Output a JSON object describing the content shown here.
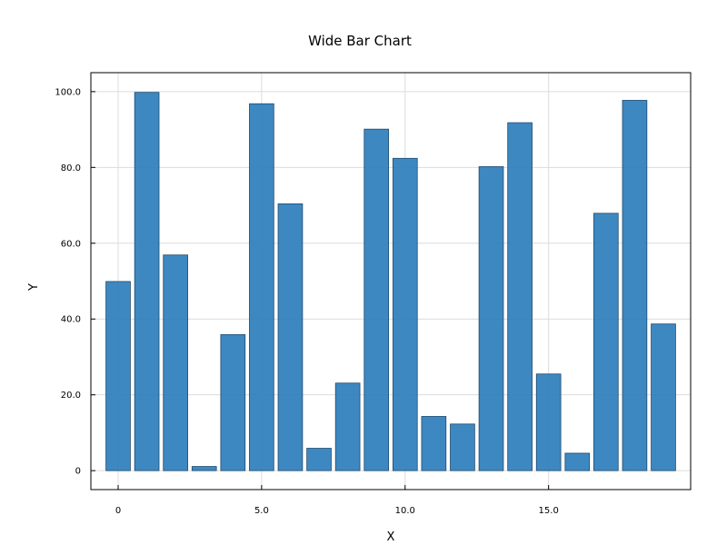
{
  "chart_data": {
    "type": "bar",
    "title": "Wide Bar Chart",
    "xlabel": "X",
    "ylabel": "Y",
    "x": [
      0,
      1,
      2,
      3,
      4,
      5,
      6,
      7,
      8,
      9,
      10,
      11,
      12,
      13,
      14,
      15,
      16,
      17,
      18,
      19
    ],
    "values": [
      49.9,
      99.8,
      56.9,
      1.1,
      35.9,
      96.8,
      70.4,
      5.9,
      23.1,
      90.1,
      82.4,
      14.3,
      12.3,
      80.2,
      91.8,
      25.5,
      4.6,
      67.9,
      97.7,
      38.7
    ],
    "xlim": [
      -0.95,
      19.95
    ],
    "ylim": [
      -5,
      105
    ],
    "x_ticks": [
      0,
      5,
      10,
      15
    ],
    "x_tick_labels": [
      "0",
      "5.0",
      "10.0",
      "15.0"
    ],
    "y_ticks": [
      0,
      20,
      40,
      60,
      80,
      100
    ],
    "y_tick_labels": [
      "0",
      "20.0",
      "40.0",
      "60.0",
      "80.0",
      "100.0"
    ],
    "grid": true,
    "colors": {
      "bar_fill": "#2e7ebc",
      "bar_edge": "#1f4a6e",
      "grid": "#dcdcdc",
      "axis": "#000000"
    }
  }
}
